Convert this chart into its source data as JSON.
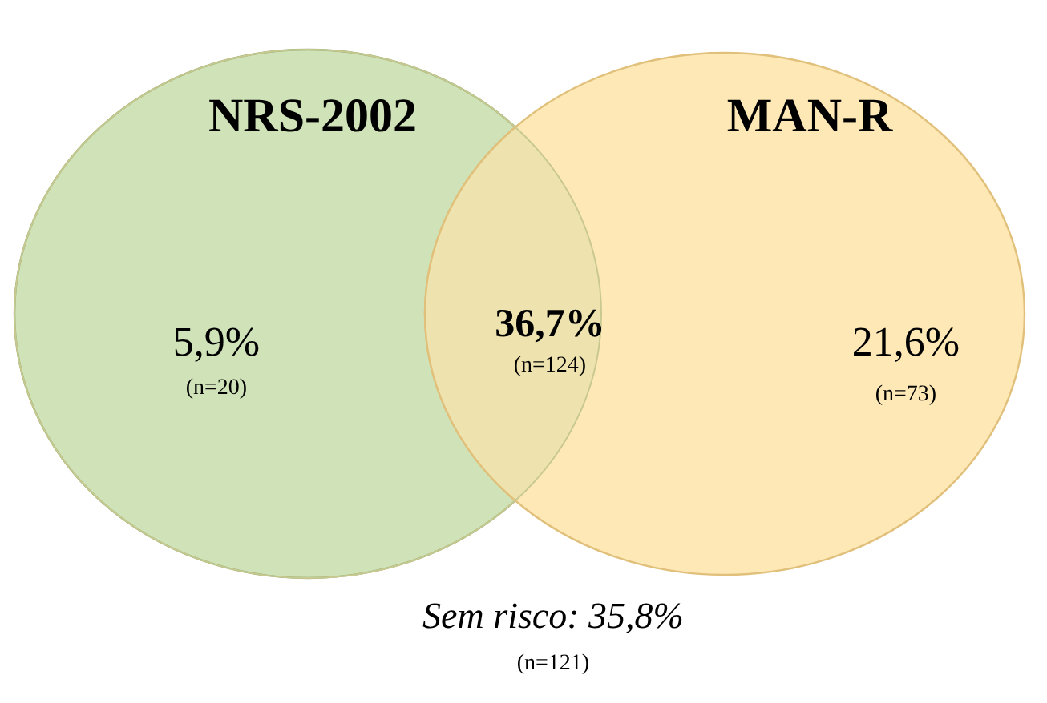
{
  "chart_data": {
    "type": "other",
    "categories": [
      null,
      null,
      null
    ],
    "colors": [
      "#cfe2b8",
      "#eee3ae",
      "#fde8b6"
    ],
    "values": [
      5.9,
      36.7,
      21.6
    ],
    "value_labels": [
      "5,9%",
      "36,7%",
      "21,6%"
    ],
    "annotations": [
      "NRS-2002",
      "MAN-R",
      "(n=20)",
      "(n=124)",
      "(n=73)",
      "Sem risco: 35,8%",
      "(n=121)"
    ]
  }
}
